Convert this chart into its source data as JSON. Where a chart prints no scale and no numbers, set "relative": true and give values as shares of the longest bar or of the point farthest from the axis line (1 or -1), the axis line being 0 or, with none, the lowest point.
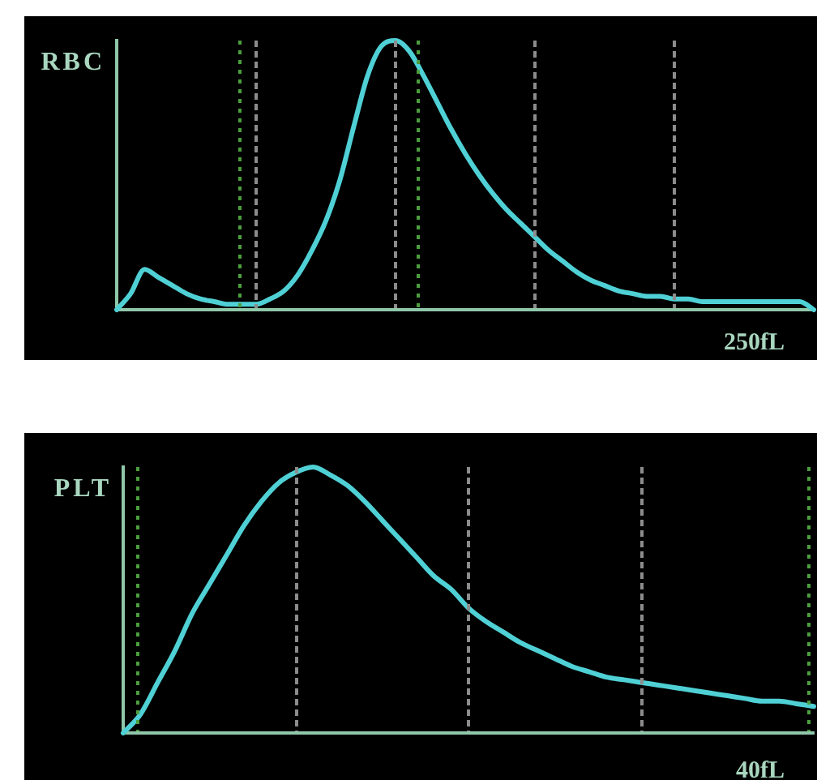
{
  "chart_data": [
    {
      "type": "line",
      "title": "RBC",
      "relative": true,
      "annotations": [
        "250fL"
      ],
      "categories": [
        null,
        null,
        null,
        null,
        null,
        null,
        null,
        null,
        null,
        null,
        null,
        null,
        null,
        null,
        null,
        null,
        null,
        null,
        null,
        null,
        null,
        null,
        null,
        null,
        null,
        null,
        null,
        null,
        null,
        null,
        null,
        null,
        null,
        null,
        null,
        null,
        null,
        null,
        null,
        null,
        null,
        null,
        null,
        null,
        null,
        null,
        null,
        null,
        null,
        null,
        null
      ],
      "series": [
        {
          "color": "#4fd0d5",
          "values": [
            0,
            0.06,
            0.15,
            0.12,
            0.09,
            0.06,
            0.04,
            0.03,
            0.02,
            0.02,
            0.02,
            0.04,
            0.07,
            0.13,
            0.22,
            0.33,
            0.48,
            0.68,
            0.87,
            0.98,
            1,
            0.96,
            0.87,
            0.77,
            0.67,
            0.58,
            0.5,
            0.43,
            0.37,
            0.32,
            0.27,
            0.22,
            0.18,
            0.14,
            0.11,
            0.09,
            0.07,
            0.06,
            0.05,
            0.05,
            0.04,
            0.04,
            0.03,
            0.03,
            0.03,
            0.03,
            0.03,
            0.03,
            0.03,
            0.03,
            0
          ]
        }
      ]
    },
    {
      "type": "line",
      "title": "PLT",
      "relative": true,
      "annotations": [
        "40fL"
      ],
      "categories": [
        null,
        null,
        null,
        null,
        null,
        null,
        null,
        null,
        null,
        null,
        null,
        null,
        null,
        null,
        null,
        null,
        null,
        null,
        null,
        null,
        null,
        null,
        null,
        null,
        null,
        null,
        null,
        null,
        null,
        null,
        null,
        null,
        null,
        null,
        null,
        null,
        null,
        null,
        null,
        null,
        null
      ],
      "series": [
        {
          "color": "#4fd0d5",
          "values": [
            0,
            0.07,
            0.19,
            0.31,
            0.45,
            0.56,
            0.67,
            0.78,
            0.87,
            0.94,
            0.98,
            1,
            0.97,
            0.93,
            0.87,
            0.8,
            0.73,
            0.66,
            0.59,
            0.54,
            0.47,
            0.42,
            0.38,
            0.34,
            0.31,
            0.28,
            0.25,
            0.23,
            0.21,
            0.2,
            0.19,
            0.18,
            0.17,
            0.16,
            0.15,
            0.14,
            0.13,
            0.12,
            0.12,
            0.11,
            0.1
          ]
        }
      ]
    }
  ]
}
